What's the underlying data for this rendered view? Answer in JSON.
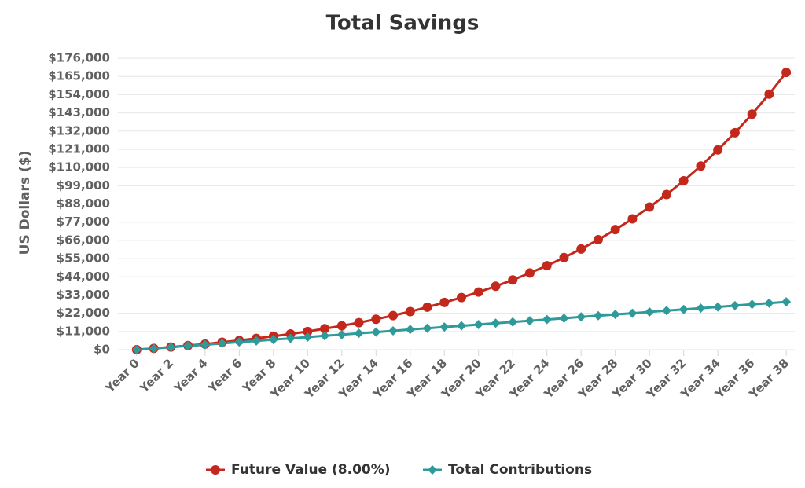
{
  "chart_data": {
    "type": "line",
    "title": "Total Savings",
    "y_label": "US Dollars ($)",
    "categories": [
      "Year 0",
      null,
      "Year 2",
      null,
      "Year 4",
      null,
      "Year 6",
      null,
      "Year 8",
      null,
      "Year 10",
      null,
      "Year 12",
      null,
      "Year 14",
      null,
      "Year 16",
      null,
      "Year 18",
      null,
      "Year 20",
      null,
      "Year 22",
      null,
      "Year 24",
      null,
      "Year 26",
      null,
      "Year 28",
      null,
      "Year 30",
      null,
      "Year 32",
      null,
      "Year 34",
      null,
      "Year 36",
      null,
      "Year 38"
    ],
    "series": [
      {
        "name": "Future Value (8.00%)",
        "color": "#c4281c",
        "marker": "circle",
        "values": [
          0,
          800,
          1600,
          2500,
          3400,
          4500,
          5600,
          6800,
          8100,
          9500,
          11000,
          12700,
          14400,
          16300,
          18400,
          20600,
          23000,
          25700,
          28500,
          31500,
          34800,
          38300,
          42100,
          46300,
          50700,
          55600,
          60800,
          66400,
          72500,
          79000,
          86100,
          93700,
          102000,
          110900,
          120600,
          131000,
          142200,
          154300,
          167400
        ]
      },
      {
        "name": "Total Contributions",
        "color": "#2f9a9a",
        "marker": "diamond",
        "values": [
          0,
          800,
          1500,
          2300,
          3000,
          3800,
          4600,
          5300,
          6100,
          6800,
          7600,
          8400,
          9100,
          9900,
          10600,
          11400,
          12200,
          12900,
          13700,
          14400,
          15200,
          16000,
          16700,
          17500,
          18200,
          19000,
          19800,
          20500,
          21300,
          22000,
          22800,
          23600,
          24300,
          25100,
          25800,
          26600,
          27400,
          28100,
          28900
        ]
      }
    ],
    "ylim": [
      0,
      176000
    ],
    "yticks": [
      {
        "value": 0,
        "label": "$0"
      },
      {
        "value": 11000,
        "label": "$11,000"
      },
      {
        "value": 22000,
        "label": "$22,000"
      },
      {
        "value": 33000,
        "label": "$33,000"
      },
      {
        "value": 44000,
        "label": "$44,000"
      },
      {
        "value": 55000,
        "label": "$55,000"
      },
      {
        "value": 66000,
        "label": "$66,000"
      },
      {
        "value": 77000,
        "label": "$77,000"
      },
      {
        "value": 88000,
        "label": "$88,000"
      },
      {
        "value": 99000,
        "label": "$99,000"
      },
      {
        "value": 110000,
        "label": "$110,000"
      },
      {
        "value": 121000,
        "label": "$121,000"
      },
      {
        "value": 132000,
        "label": "$132,000"
      },
      {
        "value": 143000,
        "label": "$143,000"
      },
      {
        "value": 154000,
        "label": "$154,000"
      },
      {
        "value": 165000,
        "label": "$165,000"
      },
      {
        "value": 176000,
        "label": "$176,000"
      }
    ],
    "grid": true,
    "legend": "bottom"
  }
}
